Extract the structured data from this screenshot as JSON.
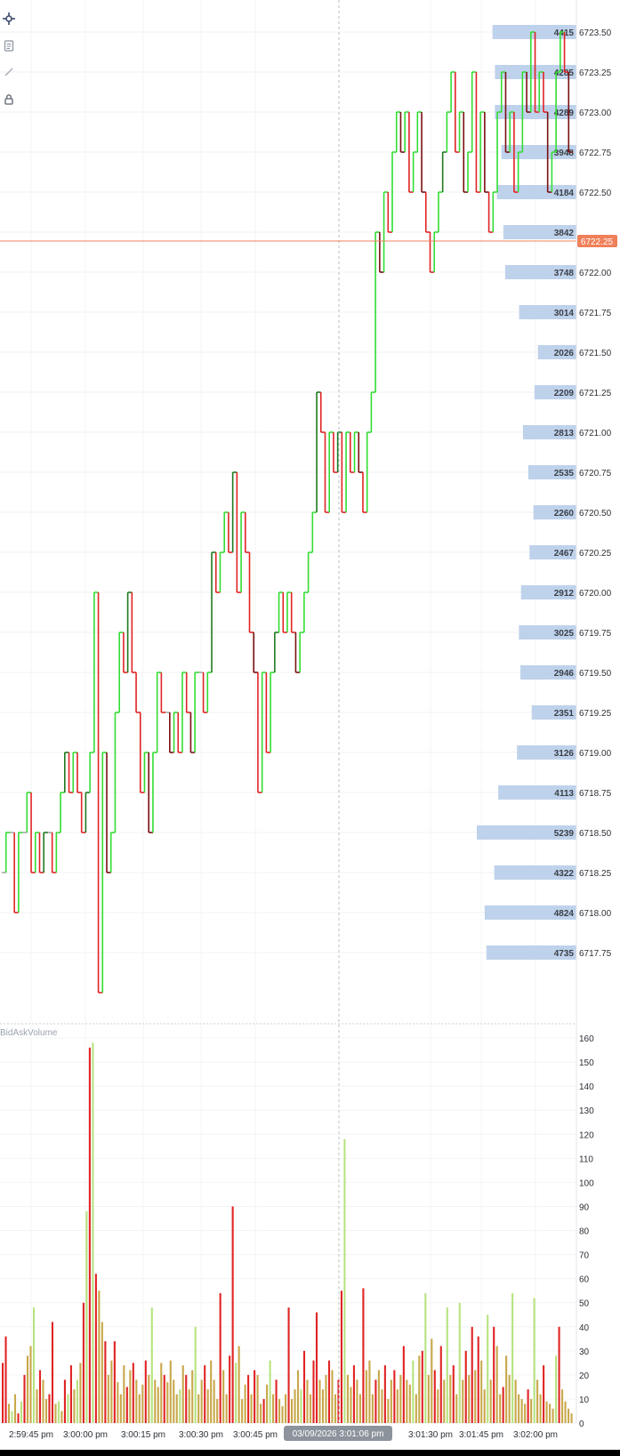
{
  "toolbar": {
    "icons": [
      "crosshair-icon",
      "note-icon",
      "pencil-icon",
      "lock-icon"
    ]
  },
  "volume_pane_label": "BidAskVolume",
  "current_price_label": "6722.25",
  "crosshair_time_label": "03/09/2026 3:01:06 pm",
  "colors": {
    "up": "#33dd33",
    "up_dark": "#1f7a1f",
    "down": "#e02424",
    "down_dark": "#7a1010",
    "neutral": "#a8a8a8",
    "profile_bar": "#bcd0ea",
    "current_price": "#f0805a",
    "vol_buy": "#b7e37f",
    "vol_sell": "#e02424",
    "vol_mixed": "#c8a84a"
  },
  "chart_data": [
    {
      "type": "line",
      "subtype": "tick-bars-with-volume-profile",
      "x_tick_labels": [
        "2:59:45 pm",
        "3:00:00 pm",
        "3:00:15 pm",
        "3:00:30 pm",
        "3:00:45 pm",
        "3:01:30 pm",
        "3:01:45 pm",
        "3:02:00 pm"
      ],
      "y_tick_labels": [
        "6723.50",
        "6723.25",
        "6723.00",
        "6722.75",
        "6722.50",
        "6722.25",
        "6722.00",
        "6721.75",
        "6721.50",
        "6721.25",
        "6721.00",
        "6720.75",
        "6720.50",
        "6720.25",
        "6720.00",
        "6719.75",
        "6719.50",
        "6719.25",
        "6719.00",
        "6718.75",
        "6718.50",
        "6718.25",
        "6718.00",
        "6717.75"
      ],
      "ylim": [
        6717.5,
        6723.6
      ],
      "current_price": 6722.25,
      "volume_profile": [
        {
          "price": 6723.5,
          "volume": 4415
        },
        {
          "price": 6723.25,
          "volume": 4285
        },
        {
          "price": 6723.0,
          "volume": 4289
        },
        {
          "price": 6722.75,
          "volume": 3948
        },
        {
          "price": 6722.5,
          "volume": 4184
        },
        {
          "price": 6722.25,
          "volume": 3842
        },
        {
          "price": 6722.0,
          "volume": 3748
        },
        {
          "price": 6721.75,
          "volume": 3014
        },
        {
          "price": 6721.5,
          "volume": 2026
        },
        {
          "price": 6721.25,
          "volume": 2209
        },
        {
          "price": 6721.0,
          "volume": 2813
        },
        {
          "price": 6720.75,
          "volume": 2535
        },
        {
          "price": 6720.5,
          "volume": 2260
        },
        {
          "price": 6720.25,
          "volume": 2467
        },
        {
          "price": 6720.0,
          "volume": 2912
        },
        {
          "price": 6719.75,
          "volume": 3025
        },
        {
          "price": 6719.5,
          "volume": 2946
        },
        {
          "price": 6719.25,
          "volume": 2351
        },
        {
          "price": 6719.0,
          "volume": 3126
        },
        {
          "price": 6718.75,
          "volume": 4113
        },
        {
          "price": 6718.5,
          "volume": 5239
        },
        {
          "price": 6718.25,
          "volume": 4322
        },
        {
          "price": 6718.0,
          "volume": 4824
        },
        {
          "price": 6717.75,
          "volume": 4735
        }
      ],
      "price_path": [
        6718.25,
        6718.5,
        6718.5,
        6718.0,
        6718.5,
        6718.5,
        6718.75,
        6718.25,
        6718.5,
        6718.25,
        6718.5,
        6718.5,
        6718.25,
        6718.5,
        6718.75,
        6719.0,
        6718.75,
        6719.0,
        6718.75,
        6718.5,
        6718.75,
        6719.0,
        6720.0,
        6717.5,
        6719.0,
        6718.25,
        6718.5,
        6719.25,
        6719.75,
        6719.5,
        6720.0,
        6719.5,
        6719.25,
        6718.75,
        6719.0,
        6718.5,
        6719.0,
        6719.5,
        6719.25,
        6719.25,
        6719.0,
        6719.25,
        6719.0,
        6719.5,
        6719.25,
        6719.0,
        6719.5,
        6719.5,
        6719.25,
        6719.5,
        6720.25,
        6720.0,
        6720.25,
        6720.5,
        6720.25,
        6720.75,
        6720.0,
        6720.5,
        6720.25,
        6719.75,
        6719.5,
        6718.75,
        6719.5,
        6719.0,
        6719.5,
        6719.75,
        6720.0,
        6719.75,
        6720.0,
        6719.75,
        6719.5,
        6719.75,
        6720.0,
        6720.25,
        6720.5,
        6721.25,
        6721.0,
        6720.5,
        6721.0,
        6720.75,
        6721.0,
        6720.5,
        6721.0,
        6720.75,
        6721.0,
        6720.75,
        6720.5,
        6721.0,
        6721.25,
        6722.25,
        6722.0,
        6722.5,
        6722.25,
        6722.75,
        6723.0,
        6722.75,
        6723.0,
        6722.5,
        6722.75,
        6723.0,
        6722.5,
        6722.25,
        6722.0,
        6722.25,
        6722.5,
        6722.75,
        6723.0,
        6723.25,
        6722.75,
        6723.0,
        6722.5,
        6722.75,
        6723.25,
        6722.5,
        6723.0,
        6722.5,
        6722.25,
        6722.5,
        6723.0,
        6723.25,
        6722.75,
        6723.0,
        6722.5,
        6722.75,
        6723.25,
        6723.0,
        6723.5,
        6723.0,
        6723.25,
        6723.0,
        6722.5,
        6722.75,
        6723.25,
        6723.5,
        6723.25,
        6722.75
      ],
      "volume_axis": {
        "tick_labels": [
          "160",
          "150",
          "140",
          "130",
          "120",
          "110",
          "100",
          "90",
          "80",
          "70",
          "60",
          "50",
          "40",
          "30",
          "20",
          "10",
          "0"
        ],
        "ylim": [
          0,
          162
        ]
      },
      "volume_bars": [
        {
          "v": 25,
          "s": "sell"
        },
        {
          "v": 36,
          "s": "sell"
        },
        {
          "v": 8,
          "s": "mixed"
        },
        {
          "v": 5,
          "s": "buy"
        },
        {
          "v": 12,
          "s": "mixed"
        },
        {
          "v": 4,
          "s": "sell"
        },
        {
          "v": 9,
          "s": "buy"
        },
        {
          "v": 20,
          "s": "sell"
        },
        {
          "v": 28,
          "s": "mixed"
        },
        {
          "v": 32,
          "s": "mixed"
        },
        {
          "v": 48,
          "s": "buy"
        },
        {
          "v": 14,
          "s": "mixed"
        },
        {
          "v": 22,
          "s": "sell"
        },
        {
          "v": 18,
          "s": "mixed"
        },
        {
          "v": 10,
          "s": "mixed"
        },
        {
          "v": 12,
          "s": "sell"
        },
        {
          "v": 42,
          "s": "sell"
        },
        {
          "v": 8,
          "s": "mixed"
        },
        {
          "v": 9,
          "s": "buy"
        },
        {
          "v": 5,
          "s": "mixed"
        },
        {
          "v": 18,
          "s": "sell"
        },
        {
          "v": 12,
          "s": "buy"
        },
        {
          "v": 24,
          "s": "sell"
        },
        {
          "v": 14,
          "s": "mixed"
        },
        {
          "v": 18,
          "s": "buy"
        },
        {
          "v": 25,
          "s": "mixed"
        },
        {
          "v": 50,
          "s": "sell"
        },
        {
          "v": 88,
          "s": "buy"
        },
        {
          "v": 156,
          "s": "sell"
        },
        {
          "v": 158,
          "s": "buy"
        },
        {
          "v": 62,
          "s": "sell"
        },
        {
          "v": 55,
          "s": "mixed"
        },
        {
          "v": 42,
          "s": "mixed"
        },
        {
          "v": 34,
          "s": "sell"
        },
        {
          "v": 20,
          "s": "mixed"
        },
        {
          "v": 26,
          "s": "mixed"
        },
        {
          "v": 34,
          "s": "sell"
        },
        {
          "v": 17,
          "s": "mixed"
        },
        {
          "v": 12,
          "s": "mixed"
        },
        {
          "v": 24,
          "s": "mixed"
        },
        {
          "v": 15,
          "s": "sell"
        },
        {
          "v": 22,
          "s": "mixed"
        },
        {
          "v": 25,
          "s": "sell"
        },
        {
          "v": 18,
          "s": "mixed"
        },
        {
          "v": 12,
          "s": "mixed"
        },
        {
          "v": 16,
          "s": "mixed"
        },
        {
          "v": 26,
          "s": "sell"
        },
        {
          "v": 20,
          "s": "mixed"
        },
        {
          "v": 48,
          "s": "buy"
        },
        {
          "v": 18,
          "s": "mixed"
        },
        {
          "v": 15,
          "s": "mixed"
        },
        {
          "v": 25,
          "s": "mixed"
        },
        {
          "v": 20,
          "s": "sell"
        },
        {
          "v": 17,
          "s": "mixed"
        },
        {
          "v": 26,
          "s": "mixed"
        },
        {
          "v": 18,
          "s": "mixed"
        },
        {
          "v": 12,
          "s": "mixed"
        },
        {
          "v": 14,
          "s": "buy"
        },
        {
          "v": 24,
          "s": "mixed"
        },
        {
          "v": 20,
          "s": "sell"
        },
        {
          "v": 14,
          "s": "mixed"
        },
        {
          "v": 22,
          "s": "mixed"
        },
        {
          "v": 40,
          "s": "buy"
        },
        {
          "v": 12,
          "s": "mixed"
        },
        {
          "v": 18,
          "s": "mixed"
        },
        {
          "v": 24,
          "s": "sell"
        },
        {
          "v": 14,
          "s": "mixed"
        },
        {
          "v": 26,
          "s": "mixed"
        },
        {
          "v": 18,
          "s": "mixed"
        },
        {
          "v": 10,
          "s": "mixed"
        },
        {
          "v": 54,
          "s": "sell"
        },
        {
          "v": 22,
          "s": "mixed"
        },
        {
          "v": 12,
          "s": "mixed"
        },
        {
          "v": 28,
          "s": "sell"
        },
        {
          "v": 90,
          "s": "sell"
        },
        {
          "v": 25,
          "s": "buy"
        },
        {
          "v": 32,
          "s": "mixed"
        },
        {
          "v": 10,
          "s": "mixed"
        },
        {
          "v": 16,
          "s": "mixed"
        },
        {
          "v": 20,
          "s": "sell"
        },
        {
          "v": 12,
          "s": "mixed"
        },
        {
          "v": 22,
          "s": "sell"
        },
        {
          "v": 20,
          "s": "mixed"
        },
        {
          "v": 8,
          "s": "mixed"
        },
        {
          "v": 10,
          "s": "sell"
        },
        {
          "v": 16,
          "s": "mixed"
        },
        {
          "v": 26,
          "s": "buy"
        },
        {
          "v": 12,
          "s": "mixed"
        },
        {
          "v": 18,
          "s": "sell"
        },
        {
          "v": 10,
          "s": "mixed"
        },
        {
          "v": 7,
          "s": "mixed"
        },
        {
          "v": 12,
          "s": "mixed"
        },
        {
          "v": 48,
          "s": "sell"
        },
        {
          "v": 10,
          "s": "mixed"
        },
        {
          "v": 14,
          "s": "mixed"
        },
        {
          "v": 22,
          "s": "mixed"
        },
        {
          "v": 14,
          "s": "buy"
        },
        {
          "v": 30,
          "s": "sell"
        },
        {
          "v": 18,
          "s": "mixed"
        },
        {
          "v": 12,
          "s": "mixed"
        },
        {
          "v": 26,
          "s": "sell"
        },
        {
          "v": 46,
          "s": "sell"
        },
        {
          "v": 18,
          "s": "mixed"
        },
        {
          "v": 14,
          "s": "mixed"
        },
        {
          "v": 20,
          "s": "mixed"
        },
        {
          "v": 26,
          "s": "sell"
        },
        {
          "v": 22,
          "s": "mixed"
        },
        {
          "v": 12,
          "s": "mixed"
        },
        {
          "v": 18,
          "s": "sell"
        },
        {
          "v": 55,
          "s": "sell"
        },
        {
          "v": 118,
          "s": "buy"
        },
        {
          "v": 20,
          "s": "mixed"
        },
        {
          "v": 15,
          "s": "mixed"
        },
        {
          "v": 24,
          "s": "sell"
        },
        {
          "v": 18,
          "s": "mixed"
        },
        {
          "v": 12,
          "s": "mixed"
        },
        {
          "v": 56,
          "s": "sell"
        },
        {
          "v": 22,
          "s": "mixed"
        },
        {
          "v": 26,
          "s": "mixed"
        },
        {
          "v": 12,
          "s": "mixed"
        },
        {
          "v": 18,
          "s": "sell"
        },
        {
          "v": 22,
          "s": "mixed"
        },
        {
          "v": 14,
          "s": "mixed"
        },
        {
          "v": 24,
          "s": "sell"
        },
        {
          "v": 10,
          "s": "mixed"
        },
        {
          "v": 18,
          "s": "mixed"
        },
        {
          "v": 22,
          "s": "sell"
        },
        {
          "v": 14,
          "s": "mixed"
        },
        {
          "v": 20,
          "s": "mixed"
        },
        {
          "v": 32,
          "s": "sell"
        },
        {
          "v": 18,
          "s": "mixed"
        },
        {
          "v": 16,
          "s": "mixed"
        },
        {
          "v": 26,
          "s": "buy"
        },
        {
          "v": 12,
          "s": "mixed"
        },
        {
          "v": 28,
          "s": "mixed"
        },
        {
          "v": 30,
          "s": "sell"
        },
        {
          "v": 54,
          "s": "buy"
        },
        {
          "v": 20,
          "s": "mixed"
        },
        {
          "v": 35,
          "s": "mixed"
        },
        {
          "v": 22,
          "s": "sell"
        },
        {
          "v": 14,
          "s": "mixed"
        },
        {
          "v": 32,
          "s": "sell"
        },
        {
          "v": 18,
          "s": "mixed"
        },
        {
          "v": 48,
          "s": "buy"
        },
        {
          "v": 20,
          "s": "mixed"
        },
        {
          "v": 24,
          "s": "sell"
        },
        {
          "v": 12,
          "s": "mixed"
        },
        {
          "v": 50,
          "s": "buy"
        },
        {
          "v": 18,
          "s": "mixed"
        },
        {
          "v": 30,
          "s": "sell"
        },
        {
          "v": 20,
          "s": "mixed"
        },
        {
          "v": 40,
          "s": "sell"
        },
        {
          "v": 22,
          "s": "mixed"
        },
        {
          "v": 36,
          "s": "sell"
        },
        {
          "v": 26,
          "s": "mixed"
        },
        {
          "v": 14,
          "s": "mixed"
        },
        {
          "v": 45,
          "s": "buy"
        },
        {
          "v": 18,
          "s": "mixed"
        },
        {
          "v": 40,
          "s": "sell"
        },
        {
          "v": 32,
          "s": "mixed"
        },
        {
          "v": 12,
          "s": "mixed"
        },
        {
          "v": 15,
          "s": "sell"
        },
        {
          "v": 28,
          "s": "mixed"
        },
        {
          "v": 20,
          "s": "mixed"
        },
        {
          "v": 54,
          "s": "buy"
        },
        {
          "v": 18,
          "s": "mixed"
        },
        {
          "v": 12,
          "s": "mixed"
        },
        {
          "v": 10,
          "s": "mixed"
        },
        {
          "v": 8,
          "s": "mixed"
        },
        {
          "v": 14,
          "s": "sell"
        },
        {
          "v": 10,
          "s": "mixed"
        },
        {
          "v": 52,
          "s": "buy"
        },
        {
          "v": 18,
          "s": "mixed"
        },
        {
          "v": 12,
          "s": "mixed"
        },
        {
          "v": 24,
          "s": "sell"
        },
        {
          "v": 9,
          "s": "mixed"
        },
        {
          "v": 8,
          "s": "mixed"
        },
        {
          "v": 6,
          "s": "mixed"
        },
        {
          "v": 28,
          "s": "buy"
        },
        {
          "v": 40,
          "s": "sell"
        },
        {
          "v": 14,
          "s": "mixed"
        },
        {
          "v": 9,
          "s": "mixed"
        },
        {
          "v": 6,
          "s": "mixed"
        },
        {
          "v": 4,
          "s": "mixed"
        }
      ]
    }
  ]
}
